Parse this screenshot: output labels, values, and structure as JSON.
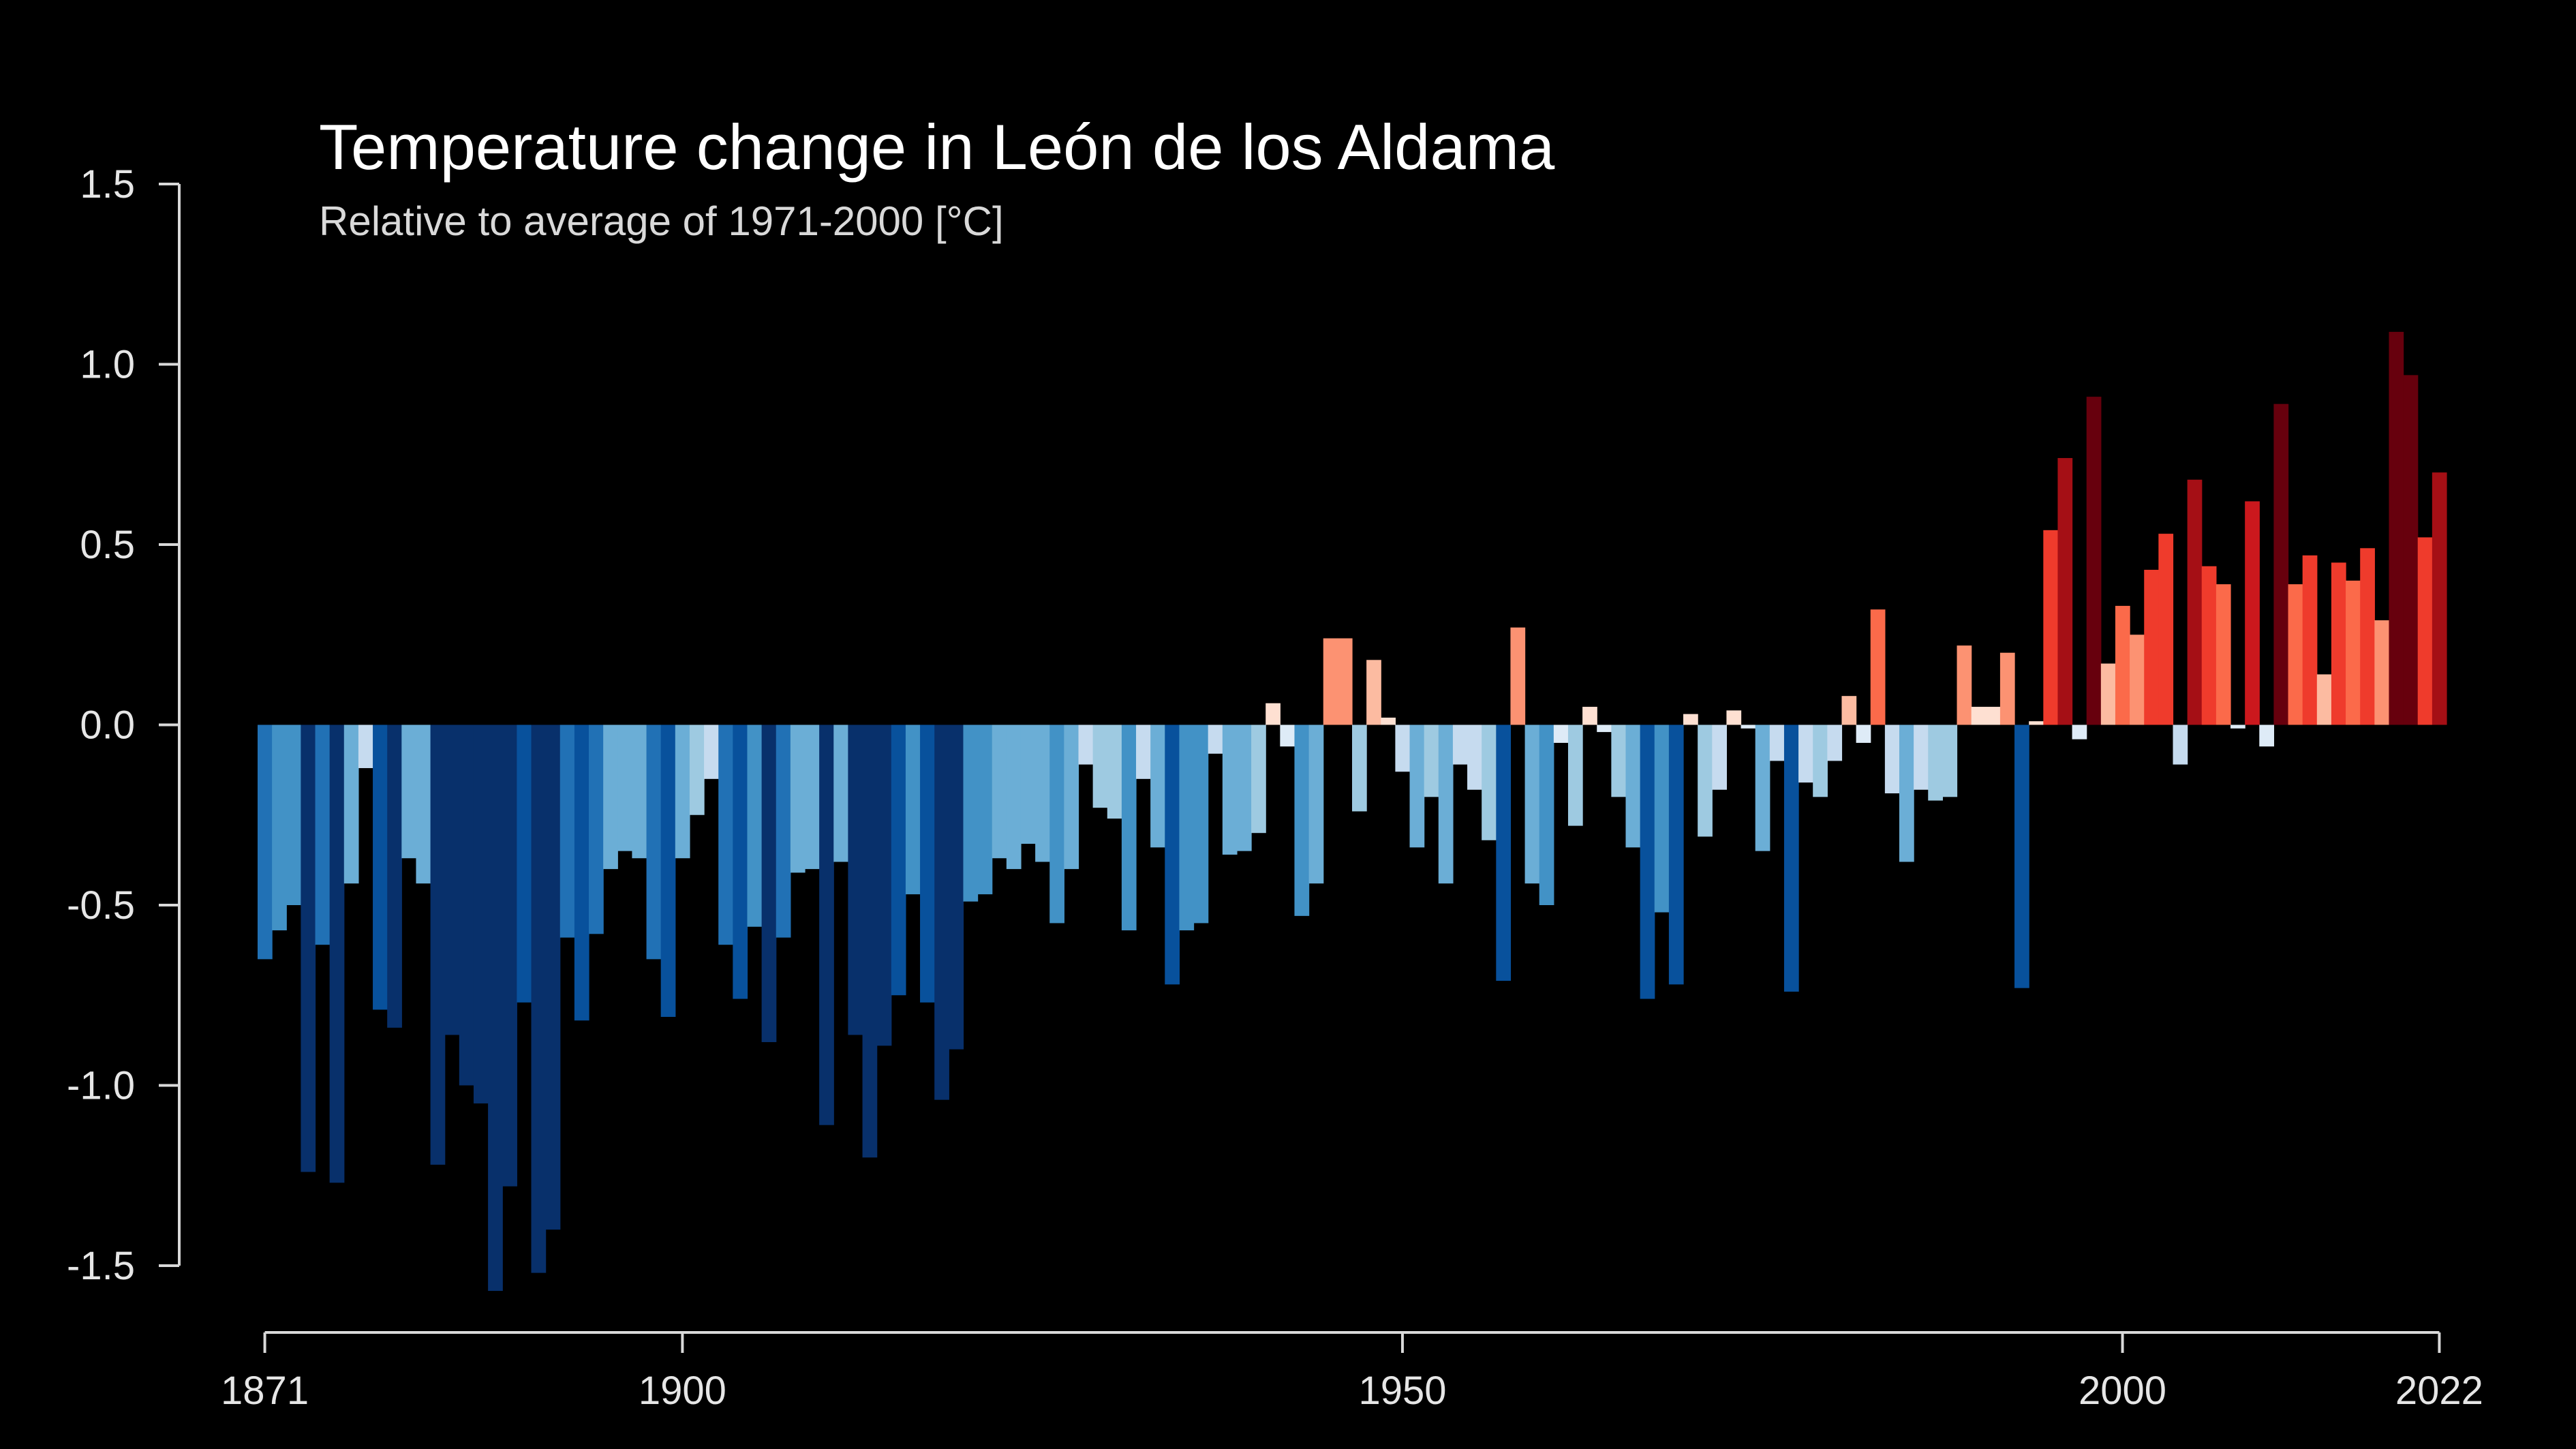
{
  "chart_data": {
    "type": "bar",
    "title": "Temperature change in León de los Aldama",
    "subtitle": "Relative to average of 1971-2000  [°C]",
    "xlabel": "",
    "ylabel": "",
    "ylim": [
      -1.5,
      1.5
    ],
    "xlim": [
      1871,
      2022
    ],
    "grid": false,
    "legend": "none",
    "yticks": [
      1.5,
      1.0,
      0.5,
      0.0,
      -0.5,
      -1.0,
      -1.5
    ],
    "ytick_labels": [
      "1.5",
      "1.0",
      "0.5",
      "0.0",
      "-0.5",
      "-1.0",
      "-1.5"
    ],
    "xticks": [
      1871,
      1900,
      1950,
      2000,
      2022
    ],
    "xtick_labels": [
      "1871",
      "1900",
      "1950",
      "2000",
      "2022"
    ],
    "colors": {
      "background": "#000000",
      "text": "#ffffff",
      "axis": "#d9d9d9",
      "scale_cold": [
        "#08306b",
        "#08519c",
        "#2171b5",
        "#4292c6",
        "#6baed6",
        "#9ecae1",
        "#c6dbef",
        "#deebf7"
      ],
      "scale_warm": [
        "#fee0d2",
        "#fcbba1",
        "#fc9272",
        "#fb6a4a",
        "#ef3b2c",
        "#cb181d",
        "#a50f15",
        "#67000d"
      ]
    },
    "x": [
      1871,
      1872,
      1873,
      1874,
      1875,
      1876,
      1877,
      1878,
      1879,
      1880,
      1881,
      1882,
      1883,
      1884,
      1885,
      1886,
      1887,
      1888,
      1889,
      1890,
      1891,
      1892,
      1893,
      1894,
      1895,
      1896,
      1897,
      1898,
      1899,
      1900,
      1901,
      1902,
      1903,
      1904,
      1905,
      1906,
      1907,
      1908,
      1909,
      1910,
      1911,
      1912,
      1913,
      1914,
      1915,
      1916,
      1917,
      1918,
      1919,
      1920,
      1921,
      1922,
      1923,
      1924,
      1925,
      1926,
      1927,
      1928,
      1929,
      1930,
      1931,
      1932,
      1933,
      1934,
      1935,
      1936,
      1937,
      1938,
      1939,
      1940,
      1941,
      1942,
      1943,
      1944,
      1945,
      1946,
      1947,
      1948,
      1949,
      1950,
      1951,
      1952,
      1953,
      1954,
      1955,
      1956,
      1957,
      1958,
      1959,
      1960,
      1961,
      1962,
      1963,
      1964,
      1965,
      1966,
      1967,
      1968,
      1969,
      1970,
      1971,
      1972,
      1973,
      1974,
      1975,
      1976,
      1977,
      1978,
      1979,
      1980,
      1981,
      1982,
      1983,
      1984,
      1985,
      1986,
      1987,
      1988,
      1989,
      1990,
      1991,
      1992,
      1993,
      1994,
      1995,
      1996,
      1997,
      1998,
      1999,
      2000,
      2001,
      2002,
      2003,
      2004,
      2005,
      2006,
      2007,
      2008,
      2009,
      2010,
      2011,
      2012,
      2013,
      2014,
      2015,
      2016,
      2017,
      2018,
      2019,
      2020,
      2021,
      2022
    ],
    "values": [
      -0.65,
      -0.57,
      -0.5,
      -1.24,
      -0.61,
      -1.27,
      -0.44,
      -0.12,
      -0.79,
      -0.84,
      -0.37,
      -0.44,
      -1.22,
      -0.86,
      -1.0,
      -1.05,
      -1.57,
      -1.28,
      -0.77,
      -1.52,
      -1.4,
      -0.59,
      -0.82,
      -0.58,
      -0.4,
      -0.35,
      -0.37,
      -0.65,
      -0.81,
      -0.37,
      -0.25,
      -0.15,
      -0.61,
      -0.76,
      -0.56,
      -0.88,
      -0.59,
      -0.41,
      -0.4,
      -1.11,
      -0.38,
      -0.86,
      -1.2,
      -0.89,
      -0.75,
      -0.47,
      -0.77,
      -1.04,
      -0.9,
      -0.49,
      -0.47,
      -0.37,
      -0.4,
      -0.33,
      -0.38,
      -0.55,
      -0.4,
      -0.11,
      -0.23,
      -0.26,
      -0.57,
      -0.15,
      -0.34,
      -0.72,
      -0.57,
      -0.55,
      -0.08,
      -0.36,
      -0.35,
      -0.3,
      0.06,
      -0.06,
      -0.53,
      -0.44,
      0.24,
      0.24,
      -0.24,
      0.18,
      0.02,
      -0.13,
      -0.34,
      -0.2,
      -0.44,
      -0.11,
      -0.18,
      -0.32,
      -0.71,
      0.27,
      -0.44,
      -0.5,
      -0.05,
      -0.28,
      0.05,
      -0.02,
      -0.2,
      -0.34,
      -0.76,
      -0.52,
      -0.72,
      0.03,
      -0.31,
      -0.18,
      0.04,
      -0.01,
      -0.35,
      -0.1,
      -0.74,
      -0.16,
      -0.2,
      -0.1,
      0.08,
      -0.05,
      0.32,
      -0.19,
      -0.38,
      -0.18,
      -0.21,
      -0.2,
      0.22,
      0.05,
      0.05,
      0.2,
      -0.73,
      0.01,
      0.54,
      0.74,
      -0.04,
      0.91,
      0.17,
      0.33,
      0.25,
      0.43,
      0.53,
      -0.11,
      0.68,
      0.44,
      0.39,
      -0.01,
      0.62,
      -0.06,
      0.89,
      0.39,
      0.47,
      0.14,
      0.45,
      0.4,
      0.49,
      0.29,
      1.09,
      0.97,
      0.52,
      0.7
    ]
  }
}
